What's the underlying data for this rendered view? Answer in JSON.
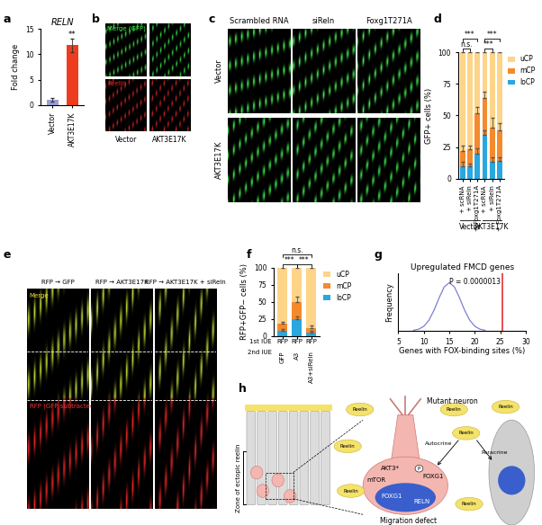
{
  "panel_letters": [
    "a",
    "b",
    "c",
    "d",
    "e",
    "f",
    "g",
    "h"
  ],
  "chart_data": [
    {
      "type": "bar",
      "title": "RELN",
      "categories": [
        "Vector",
        "AKT3E17K"
      ],
      "values": [
        1,
        11.8
      ],
      "errors": [
        0.3,
        1.3
      ],
      "colors": [
        "#9b9fd6",
        "#f03c1e"
      ],
      "ylabel": "Fold change",
      "ylim": [
        0,
        15
      ],
      "yticks": [
        0,
        5,
        10,
        15
      ],
      "annotations": [
        {
          "text": "**",
          "category": 1
        }
      ]
    },
    {
      "type": "bar",
      "stacked": true,
      "ylabel": "GFP+ cells (%)",
      "categories": [
        "+ scRNA",
        "+ siReln",
        "+ Foxg1T271A",
        "+ scRNA",
        "+ siReln",
        "+ Foxg1T271A"
      ],
      "groups": [
        {
          "label": "Vector",
          "count": 3
        },
        {
          "label": "AKT3E17K",
          "count": 3
        }
      ],
      "series": [
        {
          "name": "loCP",
          "color": "#2aa7df",
          "values": [
            10,
            10,
            20,
            35,
            13,
            14
          ],
          "errors": [
            3,
            2,
            4,
            3,
            4,
            3
          ]
        },
        {
          "name": "mCP",
          "color": "#f58a2c",
          "values": [
            12,
            13,
            32,
            29,
            27,
            24
          ],
          "errors": [
            4,
            3,
            5,
            5,
            8,
            6
          ]
        },
        {
          "name": "uCP",
          "color": "#fdd488",
          "values": [
            78,
            77,
            48,
            36,
            60,
            62
          ],
          "errors": [
            3,
            4,
            5,
            4,
            6,
            5
          ]
        }
      ],
      "comparisons": [
        {
          "from": 0,
          "to": 1,
          "text": "n.s."
        },
        {
          "from": 0,
          "to": 2,
          "text": "***"
        },
        {
          "from": 3,
          "to": 4,
          "text": "***"
        },
        {
          "from": 3,
          "to": 5,
          "text": "***"
        }
      ],
      "ylim": [
        0,
        100
      ],
      "yticks": [
        0,
        25,
        50,
        75,
        100
      ],
      "legend": "upper left"
    },
    {
      "type": "bar",
      "stacked": true,
      "ylabel": "RFP+GFP− cells (%)",
      "categories": [
        "GFP",
        "A3",
        "A3+siReln"
      ],
      "category_row_label": "2nd IUE",
      "group_rows": [
        {
          "label": "1st IUE",
          "values": [
            "RFP",
            "RFP",
            "RFP"
          ]
        }
      ],
      "series": [
        {
          "name": "loCP",
          "color": "#2aa7df",
          "values": [
            8,
            25,
            5
          ],
          "errors": [
            2,
            4,
            2
          ]
        },
        {
          "name": "mCP",
          "color": "#f58a2c",
          "values": [
            10,
            25,
            7
          ],
          "errors": [
            3,
            8,
            3
          ]
        },
        {
          "name": "uCP",
          "color": "#fdd488",
          "values": [
            82,
            50,
            88
          ],
          "errors": [
            2,
            5,
            2
          ]
        }
      ],
      "comparisons": [
        {
          "from": 0,
          "to": 1,
          "text": "***"
        },
        {
          "from": 1,
          "to": 2,
          "text": "***"
        },
        {
          "from": 0,
          "to": 2,
          "text": "n.s."
        }
      ],
      "ylim": [
        0,
        100
      ],
      "yticks": [
        0,
        25,
        50,
        75,
        100
      ],
      "legend": "upper left"
    },
    {
      "type": "line",
      "title": "Upregulated FMCD genes",
      "xlabel": "Genes with FOX-binding sites (%)",
      "ylabel": "Frequency",
      "color": "#7b7fd4",
      "x": [
        8,
        9,
        10,
        11,
        12,
        13,
        14,
        15,
        16,
        17,
        18,
        19,
        20,
        21,
        22
      ],
      "values": [
        0.01,
        0.033,
        0.094,
        0.22,
        0.427,
        0.685,
        0.91,
        1,
        0.91,
        0.685,
        0.427,
        0.22,
        0.094,
        0.033,
        0.01
      ],
      "threshold": 25.5,
      "threshold_color": "#e8303a",
      "annotation": "P = 0.0000013",
      "xlim": [
        5,
        30
      ],
      "xticks": [
        5,
        10,
        15,
        20,
        25,
        30
      ],
      "ylim": [
        0,
        1.2
      ],
      "tick_labels": "x"
    }
  ],
  "images": {
    "b": {
      "columns": [
        "Vector",
        "AKT3E17K"
      ],
      "rows": [
        "Merge (GFP)",
        "Reelin"
      ]
    },
    "c": {
      "columns": [
        "Scrambled RNA",
        "siReln",
        "Foxg1T271A"
      ],
      "rows": [
        "Vector",
        "AKT3E17K"
      ]
    },
    "e": {
      "columns": [
        "RFP → GFP",
        "RFP → AKT3E17K",
        "RFP → AKT3E17K + siReln"
      ],
      "rows": [
        "Merge",
        "RFP (GFP subtracted)"
      ]
    }
  },
  "diagram": {
    "title": "Mutant neuron",
    "zone": "Zone of ectopic reelin",
    "reelin": [
      "Reelin",
      "Reelin",
      "Reelin",
      "Reelin",
      "Reelin",
      "Reelin",
      "Reelin"
    ],
    "akt": "AKT3*",
    "mtor": "mTOR",
    "phospho": "P",
    "foxg1_cyto": "FOXG1",
    "foxg1_nuc": "FOXG1",
    "reln": "RELN",
    "autocrine": "Autocrine",
    "paracrine": "Paracrine",
    "outcome": "Migration defect"
  }
}
